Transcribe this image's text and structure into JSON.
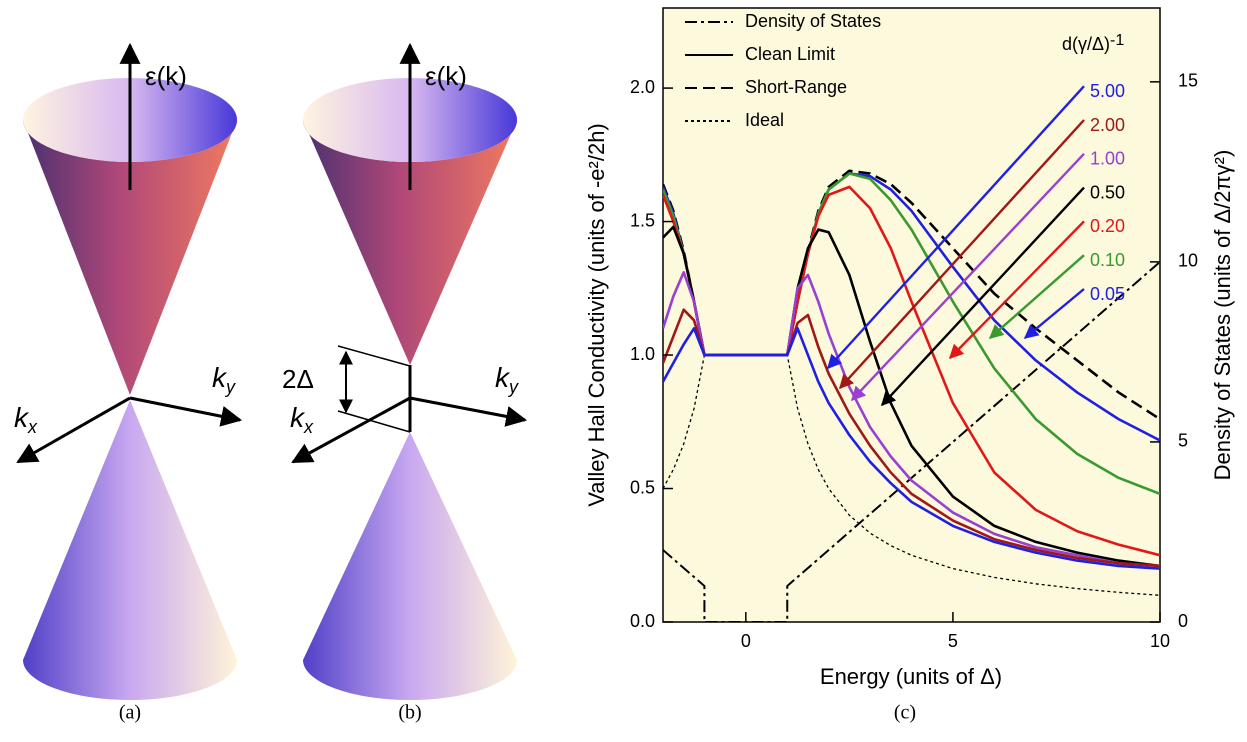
{
  "panels": {
    "a": {
      "label": "(a)",
      "energy_axis": "ε(k)",
      "kx": {
        "text": "k",
        "sub": "x"
      },
      "ky": {
        "text": "k",
        "sub": "y"
      }
    },
    "b": {
      "label": "(b)",
      "energy_axis": "ε(k)",
      "kx": {
        "text": "k",
        "sub": "x"
      },
      "ky": {
        "text": "k",
        "sub": "y"
      },
      "gap": "2Δ"
    }
  },
  "chart_data": {
    "type": "line",
    "panel_label": "(c)",
    "xlabel": "Energy (units of Δ)",
    "ylabel": "Valley Hall Conductivity (units of -e²/2h)",
    "y2label": "Density of States (units of Δ/2πγ²)",
    "x": [
      -2,
      -1.75,
      -1.5,
      -1.25,
      -1,
      -0.5,
      0,
      0.5,
      1,
      1.25,
      1.5,
      1.75,
      2,
      2.5,
      3,
      3.5,
      4,
      5,
      6,
      7,
      8,
      9,
      10
    ],
    "xlim": [
      -2,
      10
    ],
    "xticks": [
      0,
      5,
      10
    ],
    "ylim": [
      0,
      2.3
    ],
    "yticks": [
      {
        "value": 0,
        "label": "0.0"
      },
      0.5,
      {
        "value": 1,
        "label": "1.0"
      },
      1.5,
      {
        "value": 2,
        "label": "2.0"
      }
    ],
    "y2lim": [
      0,
      17.05
    ],
    "y2ticks": [
      0,
      5,
      10,
      15
    ],
    "legend": "upper left",
    "style_legend": [
      {
        "name": "Density of States",
        "dash": "dashdot"
      },
      {
        "name": "Clean Limit",
        "dash": "solid"
      },
      {
        "name": "Short-Range",
        "dash": "dashed"
      },
      {
        "name": "Ideal",
        "dash": "dotted"
      }
    ],
    "series_legend_title": {
      "text": "d(γ/Δ)",
      "superscript": "-1"
    },
    "series": [
      {
        "dash": "dashdot",
        "color": "#000000",
        "axis": "y2",
        "x": [
          -2,
          -1,
          -1,
          1,
          1,
          10
        ],
        "values": [
          2,
          1,
          0,
          0,
          1,
          10
        ]
      },
      {
        "dash": "dashed",
        "color": "#000000",
        "values": [
          1.64,
          1.54,
          1.39,
          1.2,
          1,
          1,
          1,
          1,
          1,
          1.2,
          1.39,
          1.54,
          1.63,
          1.69,
          1.68,
          1.64,
          1.57,
          1.4,
          1.23,
          1.1,
          0.98,
          0.86,
          0.76
        ]
      },
      {
        "dash": "dotted",
        "color": "#000000",
        "values": [
          0.5,
          0.571,
          0.667,
          0.8,
          1,
          1,
          1,
          1,
          1,
          0.8,
          0.667,
          0.571,
          0.5,
          0.4,
          0.333,
          0.286,
          0.25,
          0.2,
          0.167,
          0.143,
          0.125,
          0.111,
          0.1
        ]
      },
      {
        "name": "0.05",
        "dash": "solid",
        "color": "#2020e0",
        "values": [
          1.63,
          1.53,
          1.38,
          1.2,
          1,
          1,
          1,
          1,
          1,
          1.2,
          1.38,
          1.53,
          1.62,
          1.68,
          1.67,
          1.62,
          1.54,
          1.33,
          1.13,
          0.98,
          0.86,
          0.76,
          0.68
        ]
      },
      {
        "name": "0.10",
        "dash": "solid",
        "color": "#3a9a30",
        "values": [
          1.62,
          1.52,
          1.38,
          1.2,
          1,
          1,
          1,
          1,
          1,
          1.2,
          1.38,
          1.53,
          1.62,
          1.68,
          1.66,
          1.58,
          1.47,
          1.2,
          0.95,
          0.76,
          0.63,
          0.54,
          0.48
        ]
      },
      {
        "name": "0.20",
        "dash": "solid",
        "color": "#e01818",
        "values": [
          1.6,
          1.5,
          1.38,
          1.2,
          1,
          1,
          1,
          1,
          1,
          1.2,
          1.38,
          1.52,
          1.6,
          1.63,
          1.55,
          1.4,
          1.2,
          0.82,
          0.56,
          0.42,
          0.34,
          0.29,
          0.25
        ]
      },
      {
        "name": "0.50",
        "dash": "solid",
        "color": "#000000",
        "values": [
          1.44,
          1.48,
          1.38,
          1.2,
          1,
          1,
          1,
          1,
          1,
          1.25,
          1.4,
          1.47,
          1.46,
          1.3,
          1.05,
          0.82,
          0.66,
          0.47,
          0.36,
          0.3,
          0.26,
          0.23,
          0.21
        ]
      },
      {
        "name": "1.00",
        "dash": "solid",
        "color": "#9a40d0",
        "values": [
          1.1,
          1.22,
          1.31,
          1.2,
          1,
          1,
          1,
          1,
          1,
          1.25,
          1.3,
          1.2,
          1.08,
          0.88,
          0.73,
          0.62,
          0.53,
          0.41,
          0.33,
          0.28,
          0.25,
          0.22,
          0.21
        ]
      },
      {
        "name": "2.00",
        "dash": "solid",
        "color": "#a01818",
        "values": [
          0.97,
          1.07,
          1.17,
          1.13,
          1,
          1,
          1,
          1,
          1,
          1.12,
          1.15,
          1.03,
          0.93,
          0.78,
          0.66,
          0.56,
          0.48,
          0.38,
          0.31,
          0.27,
          0.24,
          0.22,
          0.21
        ]
      },
      {
        "name": "5.00",
        "dash": "solid",
        "color": "#2020e0",
        "values": [
          0.9,
          0.97,
          1.04,
          1.1,
          1,
          1,
          1,
          1,
          1,
          1.1,
          1.0,
          0.9,
          0.82,
          0.7,
          0.6,
          0.52,
          0.45,
          0.36,
          0.3,
          0.26,
          0.23,
          0.21,
          0.2
        ]
      }
    ]
  }
}
